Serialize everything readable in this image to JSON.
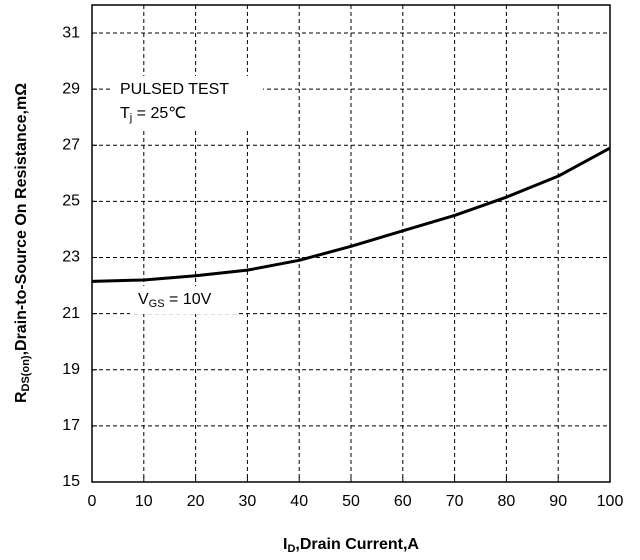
{
  "chart_data": {
    "type": "line",
    "x_label": {
      "main": "I",
      "sub": "D",
      "rest": ",Drain Current,A"
    },
    "y_label": {
      "main": "R",
      "sub": "DS(on)",
      "rest": ",Drain-to-Source On Resistance,mΩ"
    },
    "annotations": {
      "test": "PULSED TEST",
      "tj": {
        "main": "T",
        "sub": "j",
        "rest": " = 25℃"
      },
      "vgs": {
        "main": "V",
        "sub": "GS",
        "rest": " = 10V"
      }
    },
    "x": [
      0,
      10,
      20,
      30,
      40,
      50,
      60,
      70,
      80,
      90,
      100
    ],
    "values": [
      22.15,
      22.2,
      22.35,
      22.55,
      22.9,
      23.4,
      23.95,
      24.5,
      25.15,
      25.9,
      26.9
    ],
    "color": "#000000",
    "xlim": [
      0,
      100
    ],
    "xticks": [
      0,
      10,
      20,
      30,
      40,
      50,
      60,
      70,
      80,
      90,
      100
    ],
    "ylim": [
      15,
      32
    ],
    "yticks": [
      15,
      17,
      19,
      21,
      23,
      25,
      27,
      29,
      31
    ],
    "grid": true
  }
}
